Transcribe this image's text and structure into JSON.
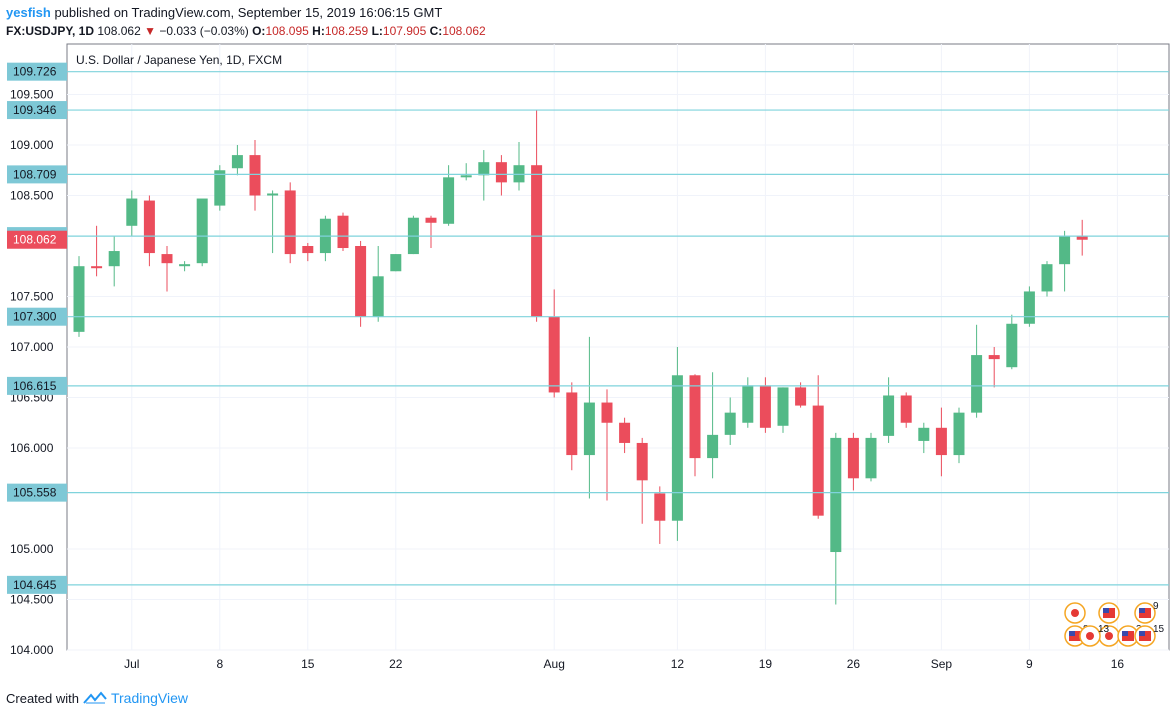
{
  "header": {
    "author": "yesfish",
    "published": "published on TradingView.com, September 15, 2019 16:06:15 GMT",
    "symbol": "FX:USDJPY, 1D",
    "last": "108.062",
    "change": "−0.033 (−0.03%)",
    "o_label": "O:",
    "o": "108.095",
    "h_label": "H:",
    "h": "108.259",
    "l_label": "L:",
    "l": "107.905",
    "c_label": "C:",
    "c": "108.062"
  },
  "footer": {
    "created_with": "Created with",
    "brand": "TradingView"
  },
  "colors": {
    "up": "#53b987",
    "down": "#eb4d5c",
    "hline": "#7fd3dc",
    "badge": "#7ec8d6",
    "price_badge": "#eb4d5c"
  },
  "chart_data": {
    "type": "candlestick",
    "title": "U.S. Dollar / Japanese Yen, 1D, FXCM",
    "ylim": [
      104.0,
      110.0
    ],
    "y_ticks": [
      "109.500",
      "109.000",
      "108.500",
      "107.500",
      "107.000",
      "106.500",
      "106.000",
      "105.000",
      "104.500",
      "104.000"
    ],
    "x_labels": [
      {
        "label": "Jul",
        "i": 3
      },
      {
        "label": "8",
        "i": 8
      },
      {
        "label": "15",
        "i": 13
      },
      {
        "label": "22",
        "i": 18
      },
      {
        "label": "Aug",
        "i": 27
      },
      {
        "label": "12",
        "i": 34
      },
      {
        "label": "19",
        "i": 39
      },
      {
        "label": "26",
        "i": 44
      },
      {
        "label": "Sep",
        "i": 49
      },
      {
        "label": "9",
        "i": 54
      },
      {
        "label": "16",
        "i": 59
      }
    ],
    "horizontal_levels": [
      109.726,
      109.346,
      108.709,
      108.098,
      107.3,
      106.615,
      105.558,
      104.645
    ],
    "level_labels": [
      "109.726",
      "109.346",
      "108.709",
      "108.098",
      "107.300",
      "106.615",
      "105.558",
      "104.645"
    ],
    "last_price": 108.062,
    "last_price_label": "108.062",
    "candles": [
      {
        "o": 107.15,
        "h": 107.9,
        "l": 107.1,
        "c": 107.8
      },
      {
        "o": 107.8,
        "h": 108.2,
        "l": 107.7,
        "c": 107.78
      },
      {
        "o": 107.8,
        "h": 108.1,
        "l": 107.6,
        "c": 107.95
      },
      {
        "o": 108.2,
        "h": 108.55,
        "l": 108.1,
        "c": 108.47
      },
      {
        "o": 108.45,
        "h": 108.5,
        "l": 107.8,
        "c": 107.93
      },
      {
        "o": 107.92,
        "h": 108.0,
        "l": 107.55,
        "c": 107.83
      },
      {
        "o": 107.8,
        "h": 107.85,
        "l": 107.75,
        "c": 107.82
      },
      {
        "o": 107.83,
        "h": 108.45,
        "l": 107.8,
        "c": 108.47
      },
      {
        "o": 108.4,
        "h": 108.8,
        "l": 108.35,
        "c": 108.75
      },
      {
        "o": 108.77,
        "h": 109.0,
        "l": 108.7,
        "c": 108.9
      },
      {
        "o": 108.9,
        "h": 109.05,
        "l": 108.35,
        "c": 108.5
      },
      {
        "o": 108.5,
        "h": 108.55,
        "l": 107.93,
        "c": 108.52
      },
      {
        "o": 108.55,
        "h": 108.63,
        "l": 107.83,
        "c": 107.92
      },
      {
        "o": 108.0,
        "h": 108.03,
        "l": 107.85,
        "c": 107.93
      },
      {
        "o": 107.93,
        "h": 108.3,
        "l": 107.85,
        "c": 108.27
      },
      {
        "o": 108.3,
        "h": 108.33,
        "l": 107.95,
        "c": 107.98
      },
      {
        "o": 108.0,
        "h": 108.05,
        "l": 107.2,
        "c": 107.3
      },
      {
        "o": 107.3,
        "h": 108.0,
        "l": 107.25,
        "c": 107.7
      },
      {
        "o": 107.75,
        "h": 107.92,
        "l": 107.75,
        "c": 107.92
      },
      {
        "o": 107.92,
        "h": 108.3,
        "l": 107.92,
        "c": 108.28
      },
      {
        "o": 108.28,
        "h": 108.3,
        "l": 107.98,
        "c": 108.23
      },
      {
        "o": 108.22,
        "h": 108.8,
        "l": 108.2,
        "c": 108.68
      },
      {
        "o": 108.68,
        "h": 108.82,
        "l": 108.65,
        "c": 108.7
      },
      {
        "o": 108.7,
        "h": 108.95,
        "l": 108.45,
        "c": 108.83
      },
      {
        "o": 108.83,
        "h": 108.9,
        "l": 108.5,
        "c": 108.63
      },
      {
        "o": 108.63,
        "h": 109.03,
        "l": 108.55,
        "c": 108.8
      },
      {
        "o": 108.8,
        "h": 109.35,
        "l": 107.25,
        "c": 107.3
      },
      {
        "o": 107.3,
        "h": 107.57,
        "l": 106.5,
        "c": 106.55
      },
      {
        "o": 106.55,
        "h": 106.65,
        "l": 105.78,
        "c": 105.93
      },
      {
        "o": 105.93,
        "h": 107.1,
        "l": 105.5,
        "c": 106.45
      },
      {
        "o": 106.45,
        "h": 106.58,
        "l": 105.48,
        "c": 106.25
      },
      {
        "o": 106.25,
        "h": 106.3,
        "l": 105.95,
        "c": 106.05
      },
      {
        "o": 106.05,
        "h": 106.1,
        "l": 105.25,
        "c": 105.68
      },
      {
        "o": 105.55,
        "h": 105.62,
        "l": 105.05,
        "c": 105.28
      },
      {
        "o": 105.28,
        "h": 107.0,
        "l": 105.08,
        "c": 106.72
      },
      {
        "o": 106.72,
        "h": 106.73,
        "l": 105.72,
        "c": 105.9
      },
      {
        "o": 105.9,
        "h": 106.75,
        "l": 105.7,
        "c": 106.13
      },
      {
        "o": 106.13,
        "h": 106.5,
        "l": 106.03,
        "c": 106.35
      },
      {
        "o": 106.25,
        "h": 106.7,
        "l": 106.2,
        "c": 106.62
      },
      {
        "o": 106.62,
        "h": 106.7,
        "l": 106.15,
        "c": 106.2
      },
      {
        "o": 106.22,
        "h": 106.6,
        "l": 106.15,
        "c": 106.6
      },
      {
        "o": 106.6,
        "h": 106.65,
        "l": 106.4,
        "c": 106.42
      },
      {
        "o": 106.42,
        "h": 106.72,
        "l": 105.3,
        "c": 105.33
      },
      {
        "o": 104.97,
        "h": 106.15,
        "l": 104.45,
        "c": 106.1
      },
      {
        "o": 106.1,
        "h": 106.15,
        "l": 105.58,
        "c": 105.7
      },
      {
        "o": 105.7,
        "h": 106.15,
        "l": 105.67,
        "c": 106.1
      },
      {
        "o": 106.12,
        "h": 106.7,
        "l": 106.05,
        "c": 106.52
      },
      {
        "o": 106.52,
        "h": 106.55,
        "l": 106.2,
        "c": 106.25
      },
      {
        "o": 106.07,
        "h": 106.25,
        "l": 105.95,
        "c": 106.2
      },
      {
        "o": 106.2,
        "h": 106.4,
        "l": 105.72,
        "c": 105.93
      },
      {
        "o": 105.93,
        "h": 106.4,
        "l": 105.85,
        "c": 106.35
      },
      {
        "o": 106.35,
        "h": 107.22,
        "l": 106.3,
        "c": 106.92
      },
      {
        "o": 106.92,
        "h": 107.0,
        "l": 106.6,
        "c": 106.88
      },
      {
        "o": 106.8,
        "h": 107.32,
        "l": 106.78,
        "c": 107.23
      },
      {
        "o": 107.23,
        "h": 107.6,
        "l": 107.2,
        "c": 107.55
      },
      {
        "o": 107.55,
        "h": 107.85,
        "l": 107.5,
        "c": 107.82
      },
      {
        "o": 107.82,
        "h": 108.15,
        "l": 107.55,
        "c": 108.1
      },
      {
        "o": 108.095,
        "h": 108.259,
        "l": 107.905,
        "c": 108.062
      }
    ],
    "events": [
      {
        "kind": "jp",
        "text": ""
      },
      {
        "kind": "us",
        "text": ""
      },
      {
        "kind": "us",
        "text": "9"
      },
      {
        "kind": "us",
        "text": "8"
      },
      {
        "kind": "jp",
        "text": ""
      },
      {
        "kind": "us",
        "text": "3"
      },
      {
        "kind": "us",
        "text": "15"
      },
      {
        "kind": "jp",
        "text": "13"
      }
    ]
  }
}
